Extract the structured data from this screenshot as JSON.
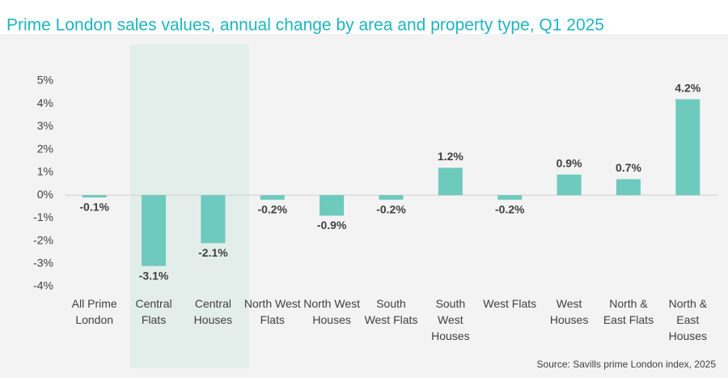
{
  "chart_data": {
    "type": "bar",
    "title": "Prime London sales values, annual change by area and property type, Q1 2025",
    "categories": [
      "All Prime London",
      "Central Flats",
      "Central Houses",
      "North West Flats",
      "North West Houses",
      "South West Flats",
      "South West Houses",
      "West Flats",
      "West Houses",
      "North & East Flats",
      "North & East Houses"
    ],
    "values": [
      -0.1,
      -3.1,
      -2.1,
      -0.2,
      -0.9,
      -0.2,
      1.2,
      -0.2,
      0.9,
      0.7,
      4.2
    ],
    "value_labels": [
      "-0.1%",
      "-3.1%",
      "-2.1%",
      "-0.2%",
      "-0.9%",
      "-0.2%",
      "1.2%",
      "-0.2%",
      "0.9%",
      "0.7%",
      "4.2%"
    ],
    "color": "#6dcabd",
    "ylim": [
      -4,
      5
    ],
    "yticks": [
      {
        "value": -4,
        "label": "-4%"
      },
      {
        "value": -3,
        "label": "-3%"
      },
      {
        "value": -2,
        "label": "-2%"
      },
      {
        "value": -1,
        "label": "-1%"
      },
      {
        "value": 0,
        "label": "0%"
      },
      {
        "value": 1,
        "label": "1%"
      },
      {
        "value": 2,
        "label": "2%"
      },
      {
        "value": 3,
        "label": "3%"
      },
      {
        "value": 4,
        "label": "4%"
      },
      {
        "value": 5,
        "label": "5%"
      }
    ],
    "source": "Source: Savills prime London index, 2025"
  }
}
